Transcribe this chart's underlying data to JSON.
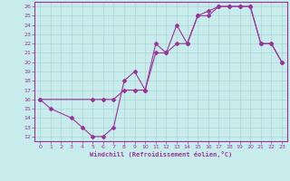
{
  "xlabel": "Windchill (Refroidissement éolien,°C)",
  "background_color": "#c8ecec",
  "line_color": "#993399",
  "xlim": [
    -0.5,
    23.5
  ],
  "ylim": [
    11.5,
    26.5
  ],
  "xticks": [
    0,
    1,
    2,
    3,
    4,
    5,
    6,
    7,
    8,
    9,
    10,
    11,
    12,
    13,
    14,
    15,
    16,
    17,
    18,
    19,
    20,
    21,
    22,
    23
  ],
  "yticks": [
    12,
    13,
    14,
    15,
    16,
    17,
    18,
    19,
    20,
    21,
    22,
    23,
    24,
    25,
    26
  ],
  "grid_color": "#aad4d4",
  "path1_x": [
    0,
    1,
    3,
    4,
    5,
    6,
    7,
    8,
    9,
    10,
    11,
    12,
    13,
    14,
    15,
    16,
    17,
    18,
    19,
    20,
    21,
    22,
    23
  ],
  "path1_y": [
    16,
    15,
    14,
    13,
    12,
    12,
    13,
    18,
    19,
    17,
    22,
    21,
    24,
    22,
    25,
    25,
    26,
    26,
    26,
    26,
    22,
    22,
    20
  ],
  "path2_x": [
    0,
    5,
    6,
    7,
    8,
    9,
    10,
    11,
    12,
    13,
    14,
    15,
    16,
    17,
    18,
    19,
    20,
    21,
    22,
    23
  ],
  "path2_y": [
    16,
    16,
    16,
    16,
    17,
    17,
    17,
    21,
    21,
    22,
    22,
    25,
    25.5,
    26,
    26,
    26,
    26,
    22,
    22,
    20
  ]
}
